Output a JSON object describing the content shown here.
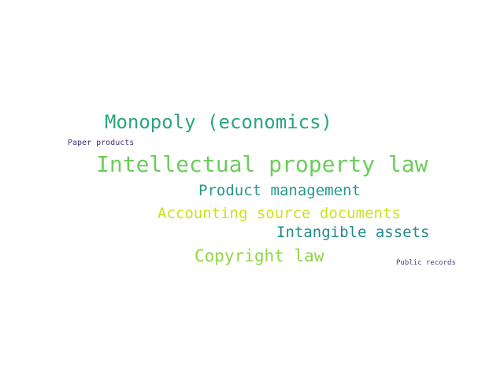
{
  "words": [
    {
      "text": "Monopoly (economics)",
      "color": "#2aa57f"
    },
    {
      "text": "Paper products",
      "color": "#472d7b"
    },
    {
      "text": "Intellectual property law",
      "color": "#6ccd5a"
    },
    {
      "text": "Product management",
      "color": "#26988a"
    },
    {
      "text": "Accounting source documents",
      "color": "#cde11d"
    },
    {
      "text": "Intangible assets",
      "color": "#238a8d"
    },
    {
      "text": "Copyright law",
      "color": "#8fd744"
    },
    {
      "text": "Public records",
      "color": "#433e85"
    }
  ]
}
